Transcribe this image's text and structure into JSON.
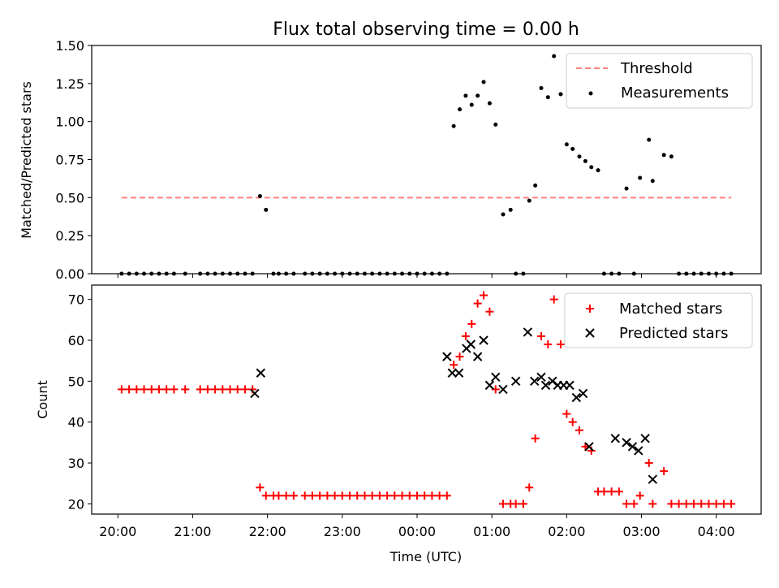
{
  "chart_data": {
    "type": "scatter",
    "title": "Flux total observing time = 0.00 h",
    "xlabel": "Time (UTC)",
    "x_tick_labels": [
      "20:00",
      "21:00",
      "22:00",
      "23:00",
      "00:00",
      "01:00",
      "02:00",
      "03:00",
      "04:00"
    ],
    "x_tick_hours": [
      0,
      1,
      2,
      3,
      4,
      5,
      6,
      7,
      8
    ],
    "x_axis_note": "x values are hours since 20:00 UTC",
    "xlim": [
      -0.35,
      8.6
    ],
    "top": {
      "ylabel": "Matched/Predicted stars",
      "ylim": [
        0,
        1.5
      ],
      "y_ticks": [
        0.0,
        0.25,
        0.5,
        0.75,
        1.0,
        1.25,
        1.5
      ],
      "y_tick_labels": [
        "0.00",
        "0.25",
        "0.50",
        "0.75",
        "1.00",
        "1.25",
        "1.50"
      ],
      "legend": {
        "position": "top-right",
        "threshold": "Threshold",
        "measurements": "Measurements"
      },
      "threshold": {
        "value": 0.5,
        "x_start": 0.05,
        "x_end": 8.2
      },
      "measurements": {
        "x": [
          0.05,
          0.15,
          0.25,
          0.35,
          0.45,
          0.55,
          0.65,
          0.75,
          0.9,
          1.1,
          1.2,
          1.3,
          1.4,
          1.5,
          1.6,
          1.7,
          1.8,
          1.9,
          1.98,
          2.08,
          2.15,
          2.25,
          2.35,
          2.5,
          2.6,
          2.7,
          2.8,
          2.9,
          3.0,
          3.1,
          3.2,
          3.3,
          3.4,
          3.5,
          3.6,
          3.7,
          3.8,
          3.9,
          4.0,
          4.1,
          4.2,
          4.3,
          4.4,
          4.49,
          4.57,
          4.65,
          4.73,
          4.81,
          4.89,
          4.97,
          5.05,
          5.15,
          5.25,
          5.32,
          5.42,
          5.5,
          5.58,
          5.66,
          5.75,
          5.83,
          5.92,
          6.0,
          6.08,
          6.17,
          6.25,
          6.33,
          6.42,
          6.5,
          6.6,
          6.7,
          6.8,
          6.9,
          6.98,
          7.1,
          7.15,
          7.3,
          7.4,
          7.5,
          7.6,
          7.7,
          7.8,
          7.9,
          8.0,
          8.1,
          8.2
        ],
        "y": [
          0,
          0,
          0,
          0,
          0,
          0,
          0,
          0,
          0,
          0,
          0,
          0,
          0,
          0,
          0,
          0,
          0,
          0.51,
          0.42,
          0,
          0,
          0,
          0,
          0,
          0,
          0,
          0,
          0,
          0,
          0,
          0,
          0,
          0,
          0,
          0,
          0,
          0,
          0,
          0,
          0,
          0,
          0,
          0,
          0.97,
          1.08,
          1.17,
          1.11,
          1.17,
          1.26,
          1.12,
          0.98,
          0.39,
          0.42,
          0,
          0,
          0.48,
          0.58,
          1.22,
          1.16,
          1.43,
          1.18,
          0.85,
          0.82,
          0.77,
          0.74,
          0.7,
          0.68,
          0,
          0,
          0,
          0.56,
          0,
          0.63,
          0.88,
          0.61,
          0.78,
          0.77,
          0,
          0,
          0,
          0,
          0,
          0,
          0,
          0
        ]
      }
    },
    "bottom": {
      "ylabel": "Count",
      "ylim": [
        17.5,
        73.5
      ],
      "y_ticks": [
        20,
        30,
        40,
        50,
        60,
        70
      ],
      "y_tick_labels": [
        "20",
        "30",
        "40",
        "50",
        "60",
        "70"
      ],
      "legend": {
        "position": "top-right",
        "matched": "Matched stars",
        "predicted": "Predicted stars"
      },
      "matched": {
        "x": [
          0.05,
          0.15,
          0.25,
          0.35,
          0.45,
          0.55,
          0.65,
          0.75,
          0.9,
          1.1,
          1.2,
          1.3,
          1.4,
          1.5,
          1.6,
          1.7,
          1.8,
          1.9,
          1.98,
          2.08,
          2.15,
          2.25,
          2.35,
          2.5,
          2.6,
          2.7,
          2.8,
          2.9,
          3.0,
          3.1,
          3.2,
          3.3,
          3.4,
          3.5,
          3.6,
          3.7,
          3.8,
          3.9,
          4.0,
          4.1,
          4.2,
          4.3,
          4.4,
          4.49,
          4.57,
          4.65,
          4.73,
          4.81,
          4.89,
          4.97,
          5.05,
          5.15,
          5.25,
          5.32,
          5.42,
          5.5,
          5.58,
          5.66,
          5.75,
          5.83,
          5.92,
          6.0,
          6.08,
          6.17,
          6.25,
          6.33,
          6.42,
          6.5,
          6.6,
          6.7,
          6.8,
          6.9,
          6.98,
          7.1,
          7.15,
          7.3,
          7.4,
          7.5,
          7.6,
          7.7,
          7.8,
          7.9,
          8.0,
          8.1,
          8.2
        ],
        "y": [
          48,
          48,
          48,
          48,
          48,
          48,
          48,
          48,
          48,
          48,
          48,
          48,
          48,
          48,
          48,
          48,
          48,
          24,
          22,
          22,
          22,
          22,
          22,
          22,
          22,
          22,
          22,
          22,
          22,
          22,
          22,
          22,
          22,
          22,
          22,
          22,
          22,
          22,
          22,
          22,
          22,
          22,
          22,
          54,
          56,
          61,
          64,
          69,
          71,
          67,
          48,
          20,
          20,
          20,
          20,
          24,
          36,
          61,
          59,
          70,
          59,
          42,
          40,
          38,
          34,
          33,
          23,
          23,
          23,
          23,
          20,
          20,
          22,
          30,
          20,
          28,
          20,
          20,
          20,
          20,
          20,
          20,
          20,
          20,
          20
        ]
      },
      "predicted": {
        "x": [
          1.83,
          1.91,
          4.4,
          4.47,
          4.56,
          4.66,
          4.72,
          4.81,
          4.89,
          4.97,
          5.05,
          5.15,
          5.32,
          5.48,
          5.57,
          5.66,
          5.72,
          5.81,
          5.88,
          5.96,
          6.04,
          6.13,
          6.22,
          6.3,
          6.65,
          6.8,
          6.88,
          6.96,
          7.05,
          7.15
        ],
        "y": [
          47,
          52,
          56,
          52,
          52,
          58,
          59,
          56,
          60,
          49,
          51,
          48,
          50,
          62,
          50,
          51,
          49,
          50,
          49,
          49,
          49,
          46,
          47,
          34,
          36,
          35,
          34,
          33,
          36,
          26
        ]
      }
    }
  }
}
